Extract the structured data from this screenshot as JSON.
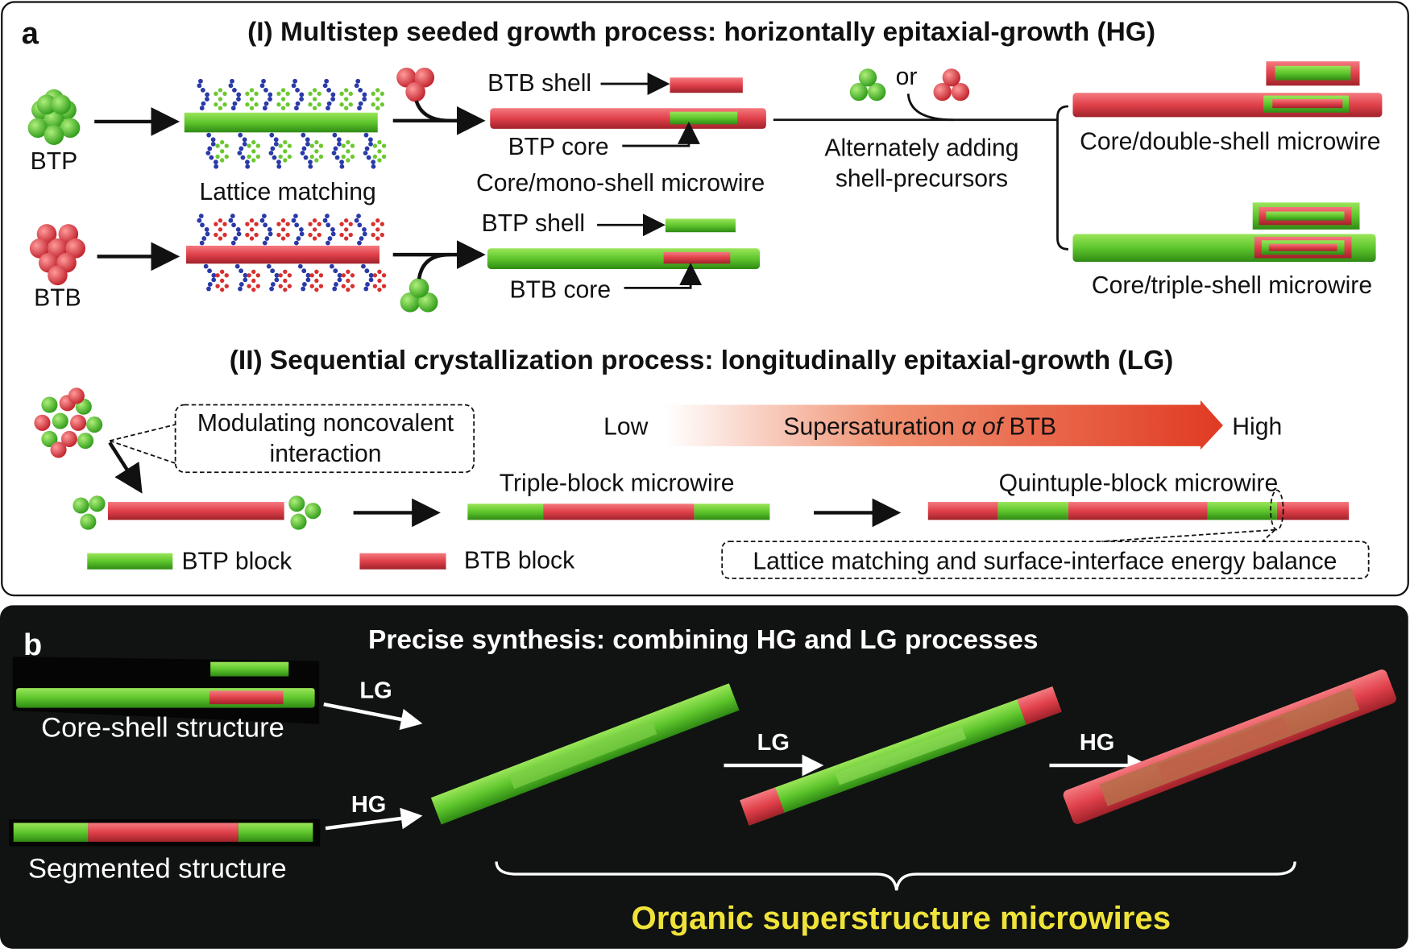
{
  "colors": {
    "btp_green": "#5ec62c",
    "btb_red": "#e0404a",
    "molecule_blue": "#2a3aa8",
    "panel_b_bg": "#111312",
    "highlight_yellow": "#efe33a"
  },
  "panel_a": {
    "label": "a",
    "section1_title": "(I) Multistep seeded growth process: horizontally epitaxial-growth (HG)",
    "btp": "BTP",
    "btb": "BTB",
    "lattice_matching": "Lattice matching",
    "btb_shell": "BTB shell",
    "btp_core": "BTP core",
    "core_mono_shell": "Core/mono-shell microwire",
    "btp_shell": "BTP shell",
    "btb_core": "BTB core",
    "or": "or",
    "alternately_line1": "Alternately adding",
    "alternately_line2": "shell-precursors",
    "core_double_shell": "Core/double-shell microwire",
    "core_triple_shell": "Core/triple-shell microwire",
    "section2_title": "(II) Sequential crystallization process: longitudinally epitaxial-growth (LG)",
    "modulating_line1": "Modulating noncovalent",
    "modulating_line2": "interaction",
    "low": "Low",
    "supersaturation_prefix": "Supersaturation ",
    "supersaturation_alpha": "α of",
    "supersaturation_suffix": " BTB",
    "high": "High",
    "triple_block": "Triple-block microwire",
    "quintuple_block": "Quintuple-block microwire",
    "btp_block": "BTP block",
    "btb_block": "BTB block",
    "lattice_energy_balance": "Lattice matching and surface-interface energy balance"
  },
  "panel_b": {
    "label": "b",
    "title": "Precise synthesis: combining HG and LG processes",
    "core_shell_structure": "Core-shell structure",
    "segmented_structure": "Segmented structure",
    "lg": "LG",
    "hg": "HG",
    "organic_superstructure": "Organic superstructure microwires"
  }
}
